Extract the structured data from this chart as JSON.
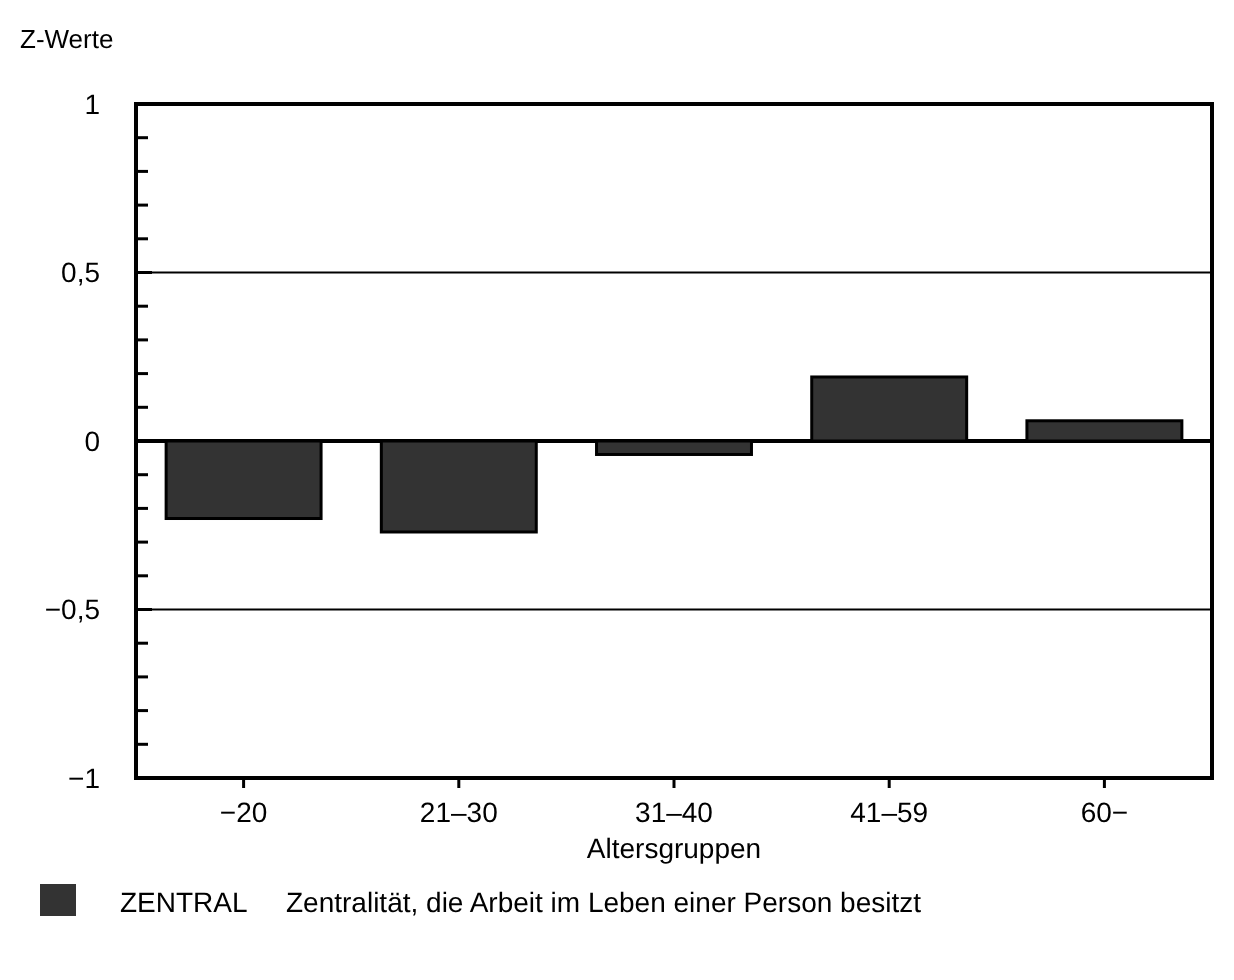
{
  "chart_data": {
    "type": "bar",
    "ylabel": "Z-Werte",
    "xlabel": "Altersgruppen",
    "categories": [
      "−20",
      "21–30",
      "31–40",
      "41–59",
      "60−"
    ],
    "series": [
      {
        "name": "ZENTRAL",
        "color": "#333333",
        "values": [
          -0.23,
          -0.27,
          -0.04,
          0.19,
          0.06
        ]
      }
    ],
    "ylim": [
      -1,
      1
    ],
    "yticks": [
      {
        "value": -1,
        "label": "−1"
      },
      {
        "value": -0.9,
        "label": null
      },
      {
        "value": -0.8,
        "label": null
      },
      {
        "value": -0.7,
        "label": null
      },
      {
        "value": -0.6,
        "label": null
      },
      {
        "value": -0.5,
        "label": "−0,5"
      },
      {
        "value": -0.4,
        "label": null
      },
      {
        "value": -0.3,
        "label": null
      },
      {
        "value": -0.2,
        "label": null
      },
      {
        "value": -0.1,
        "label": null
      },
      {
        "value": 0,
        "label": "0"
      },
      {
        "value": 0.1,
        "label": null
      },
      {
        "value": 0.2,
        "label": null
      },
      {
        "value": 0.3,
        "label": null
      },
      {
        "value": 0.4,
        "label": null
      },
      {
        "value": 0.5,
        "label": "0,5"
      },
      {
        "value": 0.6,
        "label": null
      },
      {
        "value": 0.7,
        "label": null
      },
      {
        "value": 0.8,
        "label": null
      },
      {
        "value": 0.9,
        "label": null
      },
      {
        "value": 1,
        "label": "1"
      }
    ],
    "grid": "y",
    "legend": "bottom",
    "annotations": [
      "Zentralität, die Arbeit im Leben einer Person besitzt"
    ]
  }
}
